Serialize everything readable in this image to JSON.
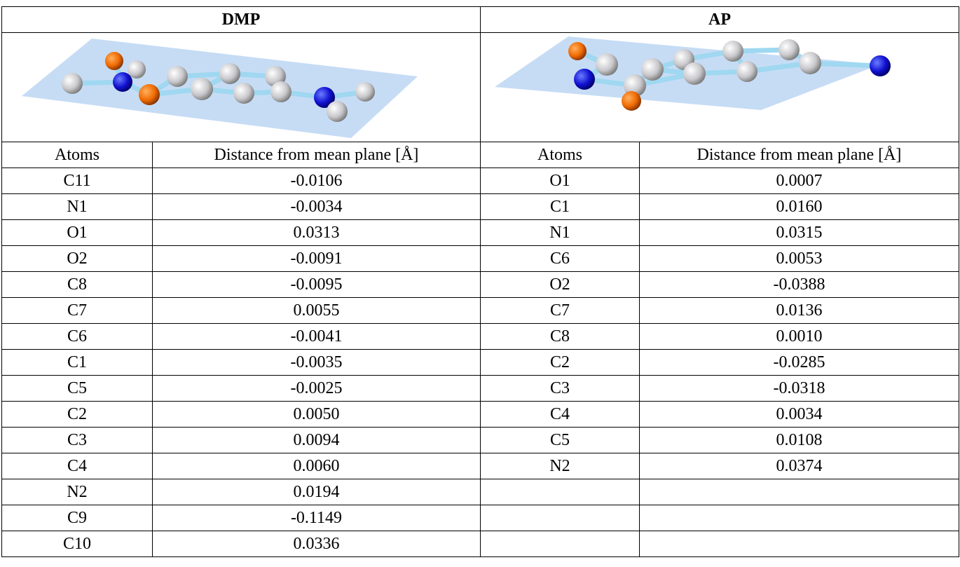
{
  "panels": [
    {
      "title": "DMP",
      "headers": [
        "Atoms",
        "Distance from mean plane [Å]"
      ],
      "rows": [
        [
          "C11",
          "-0.0106"
        ],
        [
          "N1",
          "-0.0034"
        ],
        [
          "O1",
          "0.0313"
        ],
        [
          "O2",
          "-0.0091"
        ],
        [
          "C8",
          "-0.0095"
        ],
        [
          "C7",
          "0.0055"
        ],
        [
          "C6",
          "-0.0041"
        ],
        [
          "C1",
          "-0.0035"
        ],
        [
          "C5",
          "-0.0025"
        ],
        [
          "C2",
          "0.0050"
        ],
        [
          "C3",
          "0.0094"
        ],
        [
          "C4",
          "0.0060"
        ],
        [
          "N2",
          "0.0194"
        ],
        [
          "C9",
          "-0.1149"
        ],
        [
          "C10",
          "0.0336"
        ]
      ]
    },
    {
      "title": "AP",
      "headers": [
        "Atoms",
        "Distance from mean plane [Å]"
      ],
      "rows": [
        [
          "O1",
          "0.0007"
        ],
        [
          "C1",
          "0.0160"
        ],
        [
          "N1",
          "0.0315"
        ],
        [
          "C6",
          "0.0053"
        ],
        [
          "O2",
          "-0.0388"
        ],
        [
          "C7",
          "0.0136"
        ],
        [
          "C8",
          "0.0010"
        ],
        [
          "C2",
          "-0.0285"
        ],
        [
          "C3",
          "-0.0318"
        ],
        [
          "C4",
          "0.0034"
        ],
        [
          "C5",
          "0.0108"
        ],
        [
          "N2",
          "0.0374"
        ]
      ]
    }
  ]
}
